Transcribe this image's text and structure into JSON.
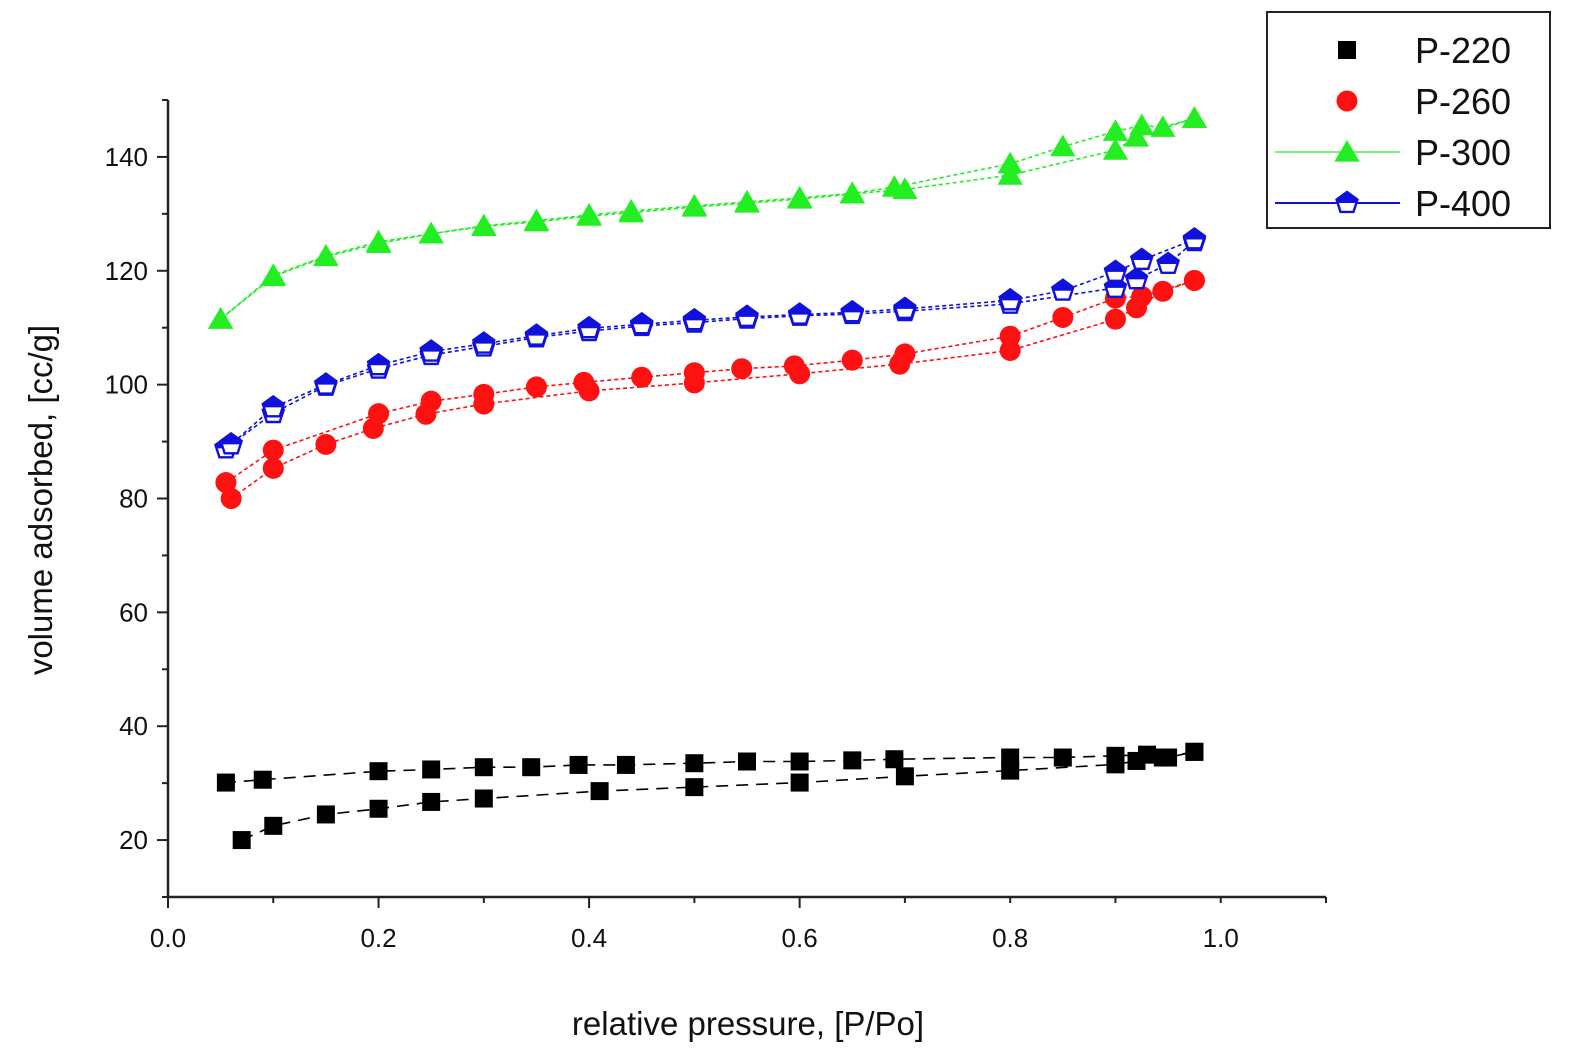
{
  "chart_data": {
    "type": "scatter",
    "title": "",
    "xlabel": "relative pressure, [P/Po]",
    "ylabel": "volume adsorbed, [cc/g]",
    "xlim": [
      0.0,
      1.1
    ],
    "ylim": [
      10,
      150
    ],
    "xticks": [
      "0.0",
      "0.2",
      "0.4",
      "0.6",
      "0.8",
      "1.0"
    ],
    "yticks": [
      "20",
      "40",
      "60",
      "80",
      "100",
      "120",
      "140"
    ],
    "xtick_values": [
      0.0,
      0.2,
      0.4,
      0.6,
      0.8,
      1.0
    ],
    "ytick_values": [
      20,
      40,
      60,
      80,
      100,
      120,
      140
    ],
    "legend_position": "top-right",
    "series": [
      {
        "name": "P-220",
        "marker": "square",
        "color": "#000000",
        "line_style": "dash",
        "adsorption": {
          "x": [
            0.07,
            0.1,
            0.15,
            0.2,
            0.25,
            0.3,
            0.41,
            0.5,
            0.6,
            0.7,
            0.8,
            0.9,
            0.92,
            0.95,
            0.975
          ],
          "y": [
            20,
            22.5,
            24.5,
            25.5,
            26.7,
            27.3,
            28.6,
            29.3,
            30.1,
            31.2,
            32.2,
            33.3,
            33.9,
            34.5,
            35.5
          ]
        },
        "desorption": {
          "x": [
            0.975,
            0.945,
            0.93,
            0.9,
            0.85,
            0.8,
            0.69,
            0.65,
            0.6,
            0.55,
            0.5,
            0.435,
            0.39,
            0.345,
            0.3,
            0.25,
            0.2,
            0.09,
            0.055
          ],
          "y": [
            35.5,
            34.5,
            35,
            34.8,
            34.5,
            34.5,
            34.2,
            34,
            33.8,
            33.8,
            33.5,
            33.2,
            33.2,
            32.8,
            32.8,
            32.4,
            32.1,
            30.6,
            30.1
          ]
        }
      },
      {
        "name": "P-260",
        "marker": "circle",
        "color": "#ff1111",
        "line_style": "dot",
        "adsorption": {
          "x": [
            0.06,
            0.1,
            0.15,
            0.195,
            0.245,
            0.3,
            0.4,
            0.5,
            0.6,
            0.695,
            0.8,
            0.9,
            0.92,
            0.945,
            0.975
          ],
          "y": [
            80,
            85.3,
            89.5,
            92.3,
            94.8,
            96.6,
            98.9,
            100.3,
            101.9,
            103.6,
            106,
            111.5,
            113.5,
            116.4,
            118.3
          ]
        },
        "desorption": {
          "x": [
            0.975,
            0.925,
            0.9,
            0.85,
            0.8,
            0.7,
            0.65,
            0.595,
            0.545,
            0.5,
            0.45,
            0.395,
            0.35,
            0.3,
            0.25,
            0.2,
            0.1,
            0.055
          ],
          "y": [
            118.3,
            115.5,
            115.2,
            111.8,
            108.5,
            105.4,
            104.3,
            103.3,
            102.8,
            102.1,
            101.3,
            100.4,
            99.6,
            98.3,
            97.1,
            94.9,
            88.5,
            82.8
          ]
        }
      },
      {
        "name": "P-300",
        "marker": "triangle",
        "color": "#22ee22",
        "line_style": "dot",
        "adsorption": {
          "x": [
            0.05,
            0.1,
            0.15,
            0.2,
            0.25,
            0.3,
            0.35,
            0.4,
            0.44,
            0.5,
            0.55,
            0.6,
            0.65,
            0.7,
            0.8,
            0.9,
            0.92,
            0.975
          ],
          "y": [
            111.5,
            119,
            122.5,
            124.8,
            126.5,
            127.8,
            128.6,
            129.6,
            130.2,
            131.2,
            131.9,
            132.6,
            133.5,
            134.3,
            136.8,
            141.2,
            143.5,
            146.8
          ]
        },
        "desorption": {
          "x": [
            0.975,
            0.945,
            0.925,
            0.9,
            0.85,
            0.8,
            0.69,
            0.65,
            0.6,
            0.55,
            0.5,
            0.44,
            0.4,
            0.35,
            0.3,
            0.25,
            0.2,
            0.15,
            0.1,
            0.05
          ],
          "y": [
            146.8,
            145.2,
            145.5,
            144.5,
            141.8,
            138.8,
            134.7,
            133.6,
            132.8,
            132.1,
            131.4,
            130.5,
            129.8,
            128.8,
            127.9,
            126.5,
            125.1,
            122.6,
            119.2,
            111.5
          ]
        }
      },
      {
        "name": "P-400",
        "marker": "pentagon-half-open",
        "color": "#1111dd",
        "line_style": "dot",
        "adsorption": {
          "x": [
            0.055,
            0.1,
            0.15,
            0.2,
            0.25,
            0.3,
            0.35,
            0.4,
            0.45,
            0.5,
            0.55,
            0.6,
            0.65,
            0.7,
            0.8,
            0.9,
            0.92,
            0.95,
            0.975
          ],
          "y": [
            88.8,
            95,
            99.8,
            102.8,
            105.2,
            106.7,
            108.3,
            109.4,
            110.3,
            110.9,
            111.6,
            112.1,
            112.4,
            112.9,
            114.2,
            117,
            118.5,
            121.2,
            125.2
          ]
        },
        "desorption": {
          "x": [
            0.975,
            0.925,
            0.9,
            0.85,
            0.8,
            0.7,
            0.65,
            0.6,
            0.55,
            0.5,
            0.45,
            0.4,
            0.35,
            0.3,
            0.25,
            0.2,
            0.15,
            0.1,
            0.06
          ],
          "y": [
            125.5,
            121.9,
            119.8,
            116.5,
            114.8,
            113.3,
            112.7,
            112.3,
            111.9,
            111.3,
            110.6,
            109.9,
            108.6,
            107.2,
            105.8,
            103.4,
            100,
            96,
            89.5
          ]
        }
      }
    ]
  }
}
